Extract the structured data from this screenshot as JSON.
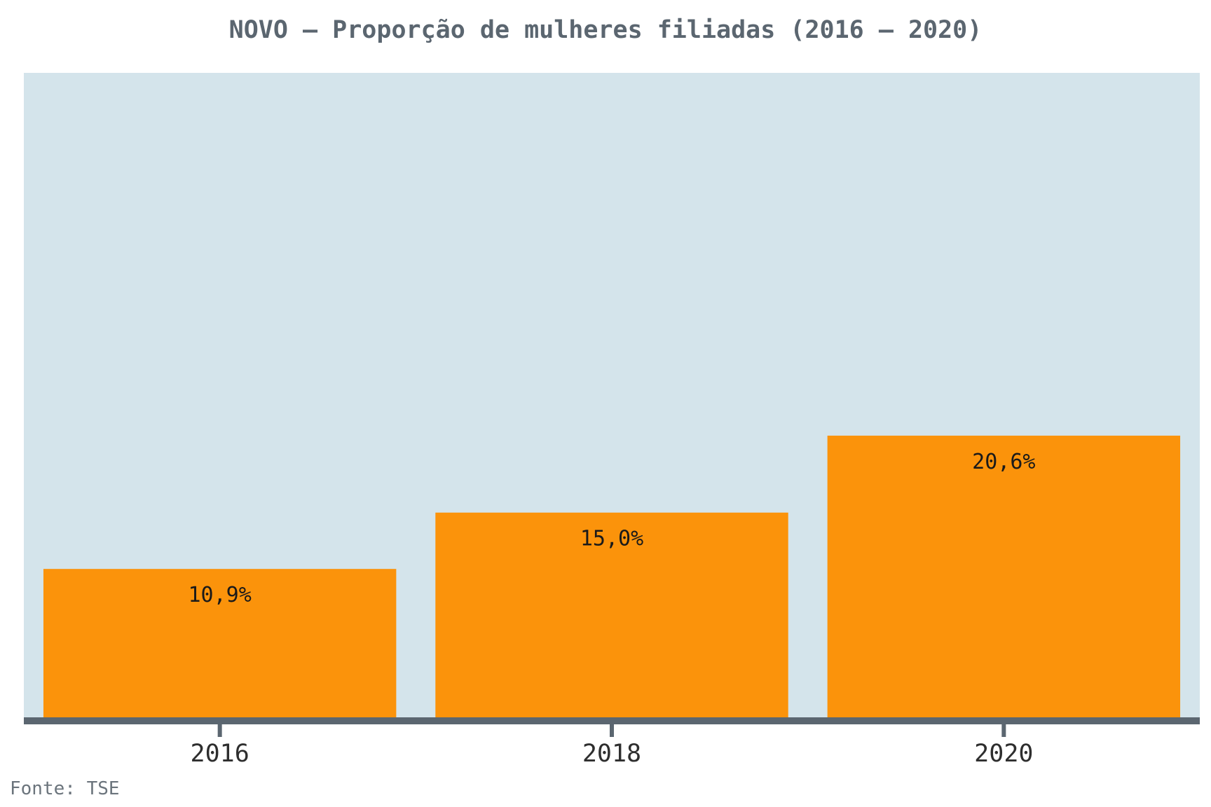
{
  "chart_data": {
    "type": "bar",
    "title": "NOVO – Proporção de mulheres filiadas (2016 – 2020)",
    "categories": [
      "2016",
      "2018",
      "2020"
    ],
    "values": [
      10.9,
      15.0,
      20.6
    ],
    "data_labels": [
      "10,9%",
      "15,0%",
      "20,6%"
    ],
    "xlabel": "",
    "ylabel": "",
    "ylim": [
      0,
      47
    ],
    "grid": false,
    "legend": "none",
    "source": "Fonte: TSE",
    "colors": {
      "bar": "#fb930b",
      "plot_background": "#d4e4eb",
      "axis": "#5b6670",
      "title": "#5b6670",
      "source": "#6b747c"
    }
  }
}
